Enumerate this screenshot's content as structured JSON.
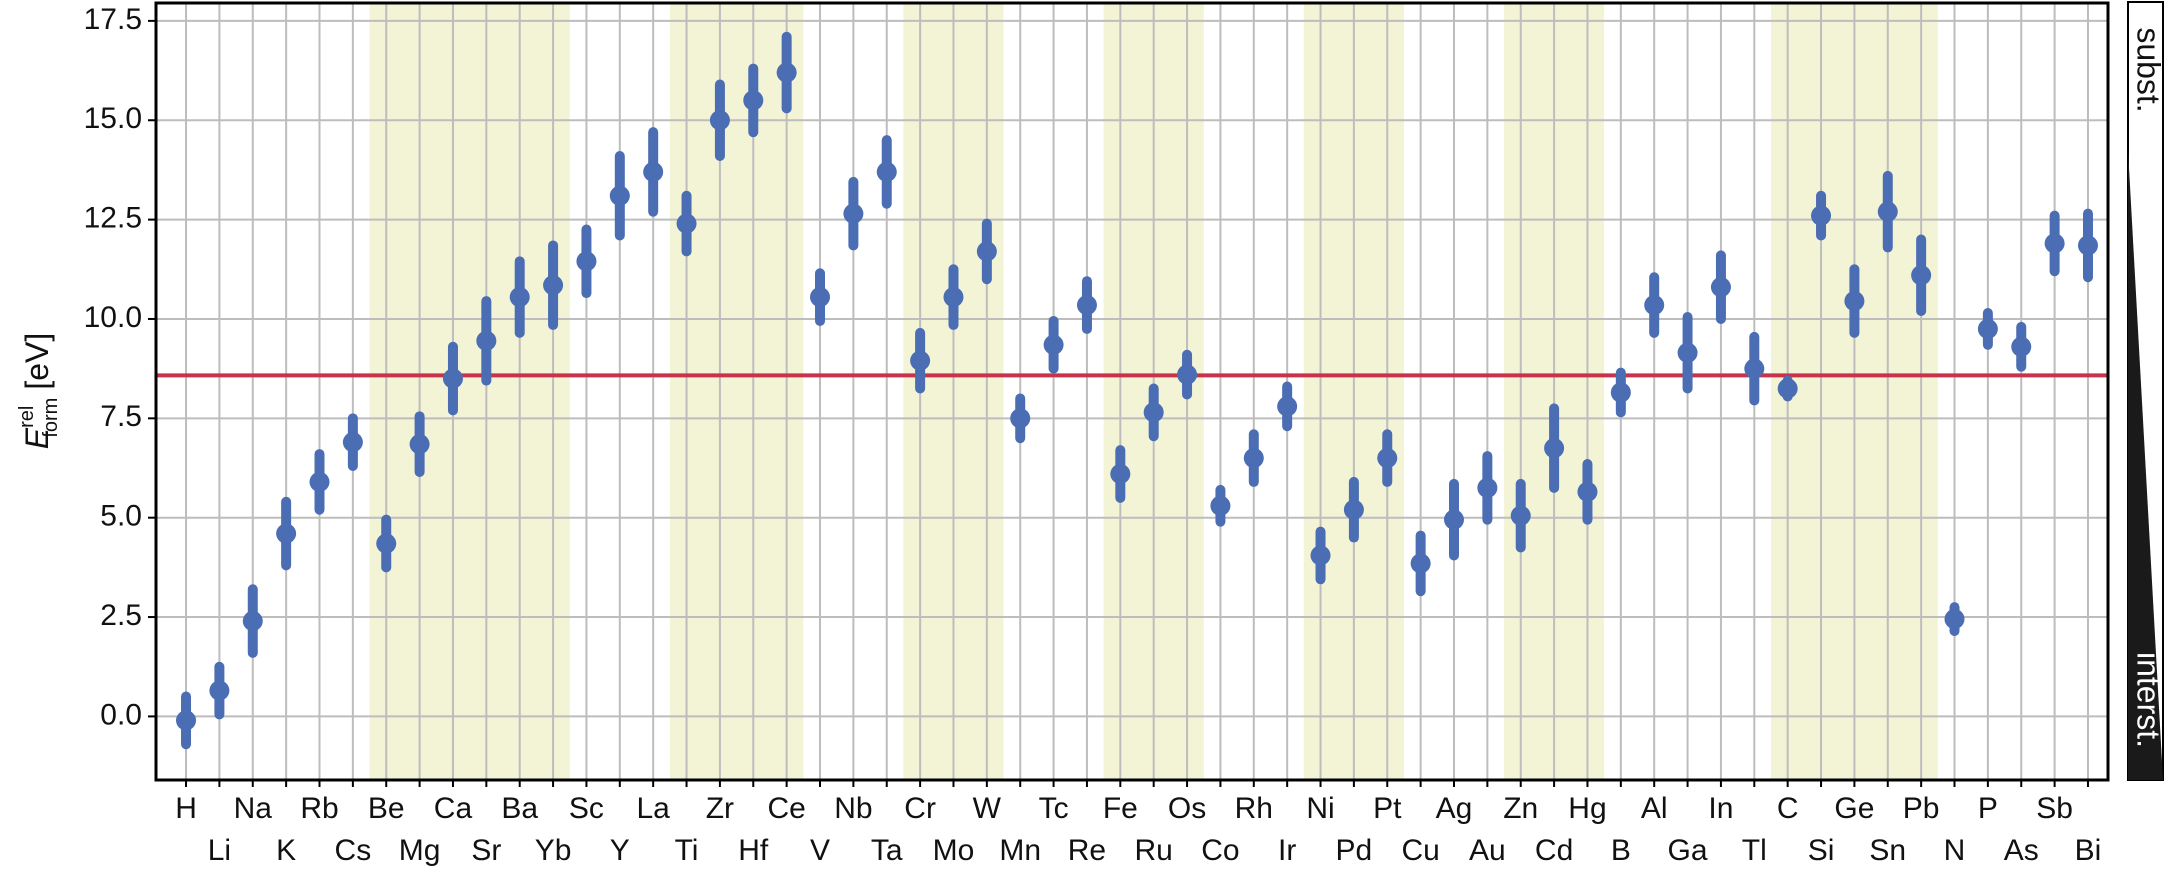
{
  "chart_data": {
    "type": "errorbar",
    "y_label": {
      "symbol": "E",
      "superscript": "rel",
      "subscript": "form",
      "unit": "[eV]"
    },
    "categories": [
      "H",
      "Li",
      "Na",
      "K",
      "Rb",
      "Cs",
      "Be",
      "Mg",
      "Ca",
      "Sr",
      "Ba",
      "Yb",
      "Sc",
      "Y",
      "La",
      "Ti",
      "Zr",
      "Hf",
      "Ce",
      "V",
      "Nb",
      "Ta",
      "Cr",
      "Mo",
      "W",
      "Mn",
      "Tc",
      "Re",
      "Fe",
      "Ru",
      "Os",
      "Co",
      "Rh",
      "Ir",
      "Ni",
      "Pd",
      "Pt",
      "Cu",
      "Ag",
      "Au",
      "Zn",
      "Cd",
      "Hg",
      "B",
      "Al",
      "Ga",
      "In",
      "Tl",
      "C",
      "Si",
      "Ge",
      "Sn",
      "Pb",
      "N",
      "P",
      "As",
      "Sb",
      "Bi"
    ],
    "values": [
      -0.1,
      0.65,
      2.4,
      4.6,
      5.9,
      6.9,
      4.35,
      6.85,
      8.5,
      9.45,
      10.55,
      10.85,
      11.45,
      13.1,
      13.7,
      12.4,
      15.0,
      15.5,
      16.2,
      10.55,
      12.65,
      13.7,
      8.95,
      10.55,
      11.7,
      7.5,
      9.35,
      10.35,
      6.1,
      7.65,
      8.6,
      5.3,
      6.5,
      7.8,
      4.05,
      5.2,
      6.5,
      3.85,
      4.95,
      5.75,
      5.05,
      6.75,
      5.65,
      8.15,
      10.35,
      9.15,
      10.8,
      8.75,
      8.25,
      12.6,
      10.45,
      12.7,
      11.1,
      2.45,
      9.75,
      9.3,
      11.9,
      11.85
    ],
    "errors": [
      0.6,
      0.6,
      0.8,
      0.8,
      0.7,
      0.6,
      0.6,
      0.7,
      0.8,
      1.0,
      0.9,
      1.0,
      0.8,
      1.0,
      1.0,
      0.7,
      0.9,
      0.8,
      0.9,
      0.6,
      0.8,
      0.8,
      0.7,
      0.7,
      0.7,
      0.5,
      0.6,
      0.6,
      0.6,
      0.6,
      0.5,
      0.4,
      0.6,
      0.5,
      0.6,
      0.7,
      0.6,
      0.7,
      0.9,
      0.8,
      0.8,
      1.0,
      0.7,
      0.5,
      0.7,
      0.9,
      0.8,
      0.8,
      0.2,
      0.5,
      0.8,
      0.9,
      0.9,
      0.3,
      0.4,
      0.5,
      0.7,
      0.8
    ],
    "color": "#4a6db3",
    "reference_line": {
      "value": 8.58,
      "color": "#c8324a"
    },
    "shaded_ranges": [
      [
        6,
        11
      ],
      [
        15,
        18
      ],
      [
        22,
        24
      ],
      [
        28,
        30
      ],
      [
        34,
        36
      ],
      [
        40,
        42
      ],
      [
        48,
        52
      ]
    ],
    "shade_color": "#f3f3d6",
    "ylim": [
      -1.6,
      17.95
    ],
    "yticks": [
      {
        "value": 0,
        "label": "0.0"
      },
      2.5,
      {
        "value": 5,
        "label": "5.0"
      },
      7.5,
      {
        "value": 10,
        "label": "10.0"
      },
      12.5,
      {
        "value": 15,
        "label": "15.0"
      },
      17.5
    ],
    "grid": true,
    "gradient_labels": {
      "top": "subst.",
      "bottom": "interst."
    }
  }
}
